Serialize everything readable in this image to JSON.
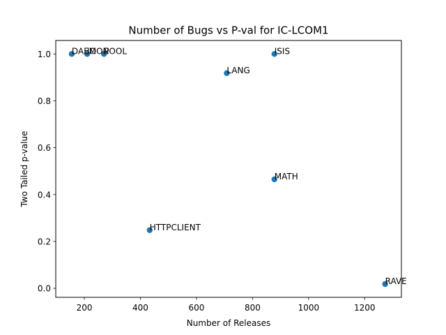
{
  "chart_data": {
    "type": "scatter",
    "title": "Number of Bugs vs P-val for IC-LCOM1",
    "xlabel": "Number of Releases",
    "ylabel": "Two Tailed p-value",
    "xlim": [
      98,
      1331
    ],
    "ylim": [
      -0.0385,
      1.0575
    ],
    "xticks": [
      200,
      400,
      600,
      800,
      1000,
      1200
    ],
    "yticks": [
      0.0,
      0.2,
      0.4,
      0.6,
      0.8,
      1.0
    ],
    "xtick_labels": [
      "200",
      "400",
      "600",
      "800",
      "1000",
      "1200"
    ],
    "ytick_labels": [
      "0.0",
      "0.2",
      "0.4",
      "0.6",
      "0.8",
      "1.0"
    ],
    "grid": false,
    "marker_color": "#1f77b4",
    "points": [
      {
        "label": "DAEMON",
        "x": 155,
        "y": 1.0
      },
      {
        "label": "IO",
        "x": 210,
        "y": 1.0
      },
      {
        "label": "POOL",
        "x": 270,
        "y": 1.0
      },
      {
        "label": "LANG",
        "x": 708,
        "y": 0.918
      },
      {
        "label": "ISIS",
        "x": 878,
        "y": 1.0
      },
      {
        "label": "MATH",
        "x": 878,
        "y": 0.465
      },
      {
        "label": "HTTPCLIENT",
        "x": 433,
        "y": 0.248
      },
      {
        "label": "RAVE",
        "x": 1273,
        "y": 0.018
      }
    ]
  }
}
